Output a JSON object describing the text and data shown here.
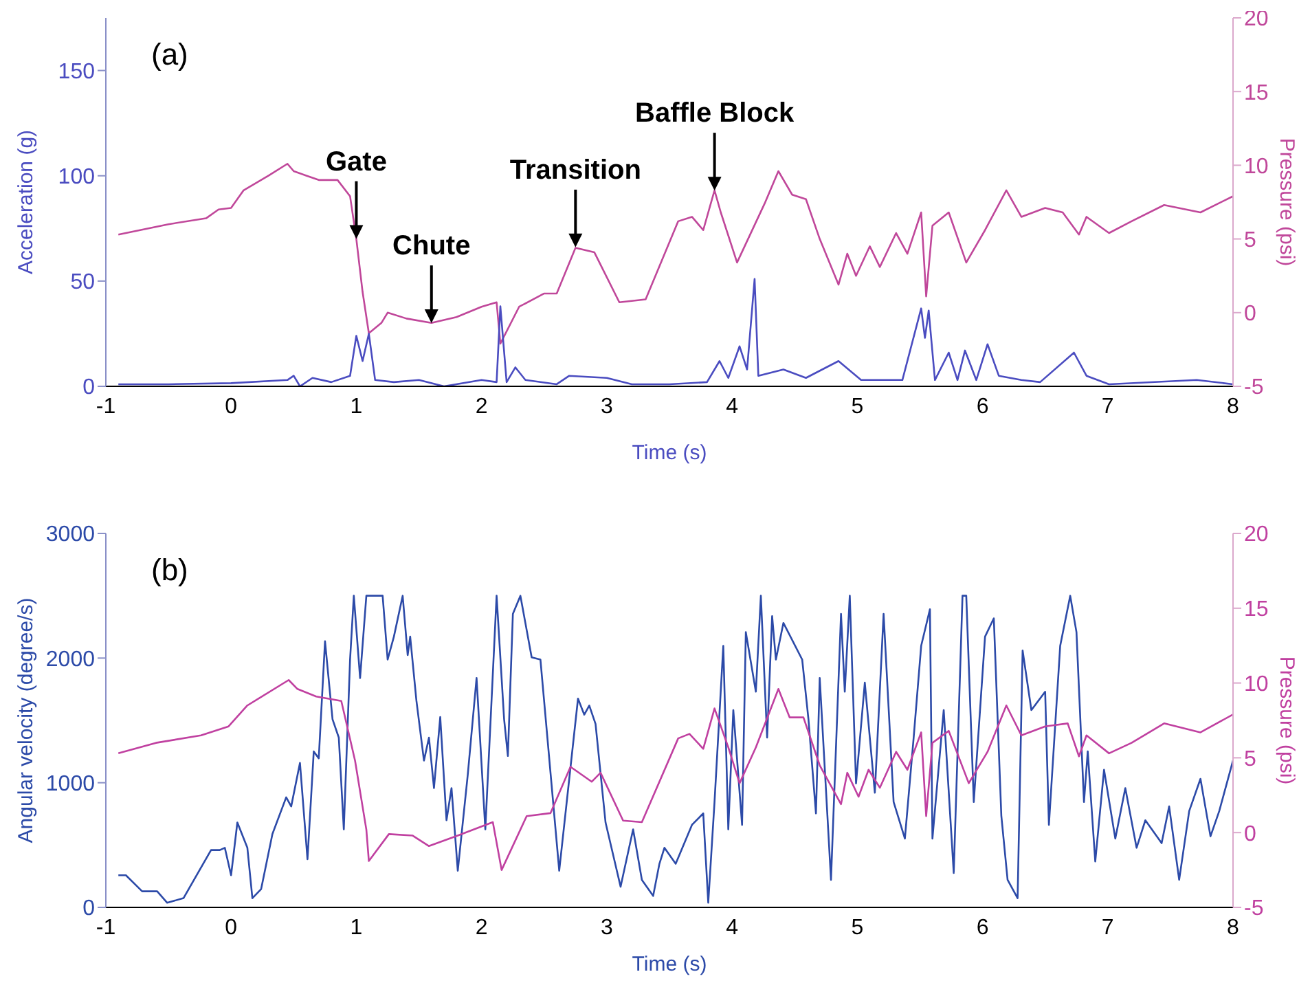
{
  "chart_data": [
    {
      "type": "line",
      "xlabel": "Time (s)",
      "ylabel": "Acceleration (g)",
      "y2label": "Pressure (psi)",
      "xlim": [
        -1,
        8
      ],
      "xticks": [
        -1,
        0,
        1,
        2,
        3,
        4,
        5,
        6,
        7,
        8
      ],
      "ylim": [
        0,
        175
      ],
      "yticks": [
        0,
        50,
        100,
        150
      ],
      "y2lim": [
        -5,
        20
      ],
      "y2ticks": [
        -5,
        0,
        5,
        10,
        15,
        20
      ],
      "marker": "none",
      "annotations": [
        "(a)",
        {
          "text": "Gate",
          "x": 1.0,
          "y": 70
        },
        {
          "text": "Chute",
          "x": 1.6,
          "y": 30
        },
        {
          "text": "Transition",
          "x": 2.75,
          "y": 66
        },
        {
          "text": "Baffle Block",
          "x": 3.86,
          "y": 93
        }
      ],
      "series": [
        {
          "color": "#c0479a",
          "axis": "y2",
          "x": [
            -0.9,
            -0.5,
            -0.2,
            -0.1,
            0,
            0.1,
            0.3,
            0.45,
            0.5,
            0.6,
            0.7,
            0.85,
            0.95,
            1.0,
            1.05,
            1.1,
            1.2,
            1.25,
            1.4,
            1.6,
            1.8,
            2.0,
            2.12,
            2.15,
            2.3,
            2.5,
            2.6,
            2.75,
            2.9,
            3.1,
            3.31,
            3.57,
            3.68,
            3.77,
            3.86,
            3.91,
            4.04,
            4.26,
            4.37,
            4.48,
            4.59,
            4.7,
            4.85,
            4.92,
            4.99,
            5.1,
            5.18,
            5.31,
            5.4,
            5.51,
            5.55,
            5.6,
            5.73,
            5.87,
            6.02,
            6.19,
            6.31,
            6.5,
            6.64,
            6.77,
            6.83,
            7.01,
            7.19,
            7.45,
            7.74,
            8.0
          ],
          "values": [
            5.3,
            6.0,
            6.4,
            7.0,
            7.1,
            8.3,
            9.3,
            10.1,
            9.6,
            9.3,
            9.0,
            9.0,
            7.9,
            5.0,
            1.4,
            -1.4,
            -0.7,
            0,
            -0.4,
            -0.7,
            -0.3,
            0.4,
            0.7,
            -2.1,
            0.4,
            1.3,
            1.3,
            4.4,
            4.1,
            0.7,
            0.9,
            6.2,
            6.5,
            5.6,
            8.3,
            6.8,
            3.4,
            7.4,
            9.6,
            8.0,
            7.7,
            5.0,
            1.9,
            4.0,
            2.5,
            4.5,
            3.1,
            5.4,
            4.0,
            6.8,
            1.1,
            5.9,
            6.8,
            3.4,
            5.6,
            8.3,
            6.5,
            7.1,
            6.8,
            5.3,
            6.5,
            5.4,
            6.2,
            7.3,
            6.8,
            7.9
          ]
        },
        {
          "color": "#4a4cc0",
          "axis": "y",
          "x": [
            -0.9,
            -0.5,
            0,
            0.45,
            0.5,
            0.55,
            0.65,
            0.8,
            0.95,
            1.0,
            1.05,
            1.1,
            1.15,
            1.3,
            1.5,
            1.7,
            2.0,
            2.12,
            2.15,
            2.2,
            2.27,
            2.35,
            2.6,
            2.7,
            3.0,
            3.2,
            3.5,
            3.8,
            3.9,
            3.97,
            4.06,
            4.12,
            4.18,
            4.21,
            4.41,
            4.59,
            4.85,
            5.03,
            5.36,
            5.51,
            5.54,
            5.57,
            5.62,
            5.73,
            5.8,
            5.86,
            5.95,
            6.04,
            6.13,
            6.31,
            6.46,
            6.73,
            6.83,
            7.01,
            7.71,
            8.0
          ],
          "values": [
            1,
            1,
            1.5,
            3,
            5,
            0,
            4,
            2,
            5,
            24,
            12,
            25,
            3,
            2,
            3,
            0,
            3,
            2,
            38,
            2,
            9,
            3,
            1,
            5,
            4,
            1,
            1,
            2,
            12,
            4,
            19,
            8,
            51,
            5,
            8,
            4,
            12,
            3,
            3,
            37,
            23,
            36,
            3,
            16,
            3,
            17,
            3,
            20,
            5,
            3,
            2,
            16,
            5,
            1,
            3,
            1
          ]
        }
      ]
    },
    {
      "type": "line",
      "xlabel": "Time (s)",
      "ylabel": "Angular velocity (degree/s)",
      "y2label": "Pressure (psi)",
      "xlim": [
        -1,
        8
      ],
      "xticks": [
        -1,
        0,
        1,
        2,
        3,
        4,
        5,
        6,
        7,
        8
      ],
      "ylim": [
        0,
        3000
      ],
      "yticks": [
        0,
        1000,
        2000,
        3000
      ],
      "y2lim": [
        -5,
        20
      ],
      "y2ticks": [
        -5,
        0,
        5,
        10,
        15,
        20
      ],
      "marker": "none",
      "annotations": [
        "(b)"
      ],
      "series": [
        {
          "color": "#2c4aa8",
          "axis": "y",
          "x": [
            -0.9,
            -0.84,
            -0.71,
            -0.59,
            -0.51,
            -0.38,
            -0.16,
            -0.09,
            -0.05,
            0.0,
            0.05,
            0.13,
            0.17,
            0.24,
            0.33,
            0.44,
            0.48,
            0.55,
            0.61,
            0.66,
            0.7,
            0.75,
            0.81,
            0.86,
            0.9,
            0.95,
            0.98,
            1.03,
            1.08,
            1.21,
            1.25,
            1.3,
            1.37,
            1.41,
            1.43,
            1.48,
            1.54,
            1.58,
            1.62,
            1.67,
            1.72,
            1.76,
            1.81,
            1.89,
            1.96,
            2.03,
            2.12,
            2.18,
            2.21,
            2.25,
            2.31,
            2.4,
            2.47,
            2.62,
            2.77,
            2.82,
            2.86,
            2.91,
            2.99,
            3.11,
            3.21,
            3.28,
            3.37,
            3.42,
            3.46,
            3.55,
            3.68,
            3.77,
            3.81,
            3.86,
            3.93,
            3.97,
            4.01,
            4.08,
            4.11,
            4.19,
            4.23,
            4.28,
            4.32,
            4.35,
            4.41,
            4.56,
            4.61,
            4.67,
            4.7,
            4.79,
            4.87,
            4.9,
            4.94,
            4.99,
            5.06,
            5.14,
            5.21,
            5.29,
            5.38,
            5.45,
            5.51,
            5.58,
            5.6,
            5.69,
            5.77,
            5.84,
            5.87,
            5.93,
            6.02,
            6.09,
            6.15,
            6.2,
            6.28,
            6.32,
            6.39,
            6.5,
            6.53,
            6.62,
            6.7,
            6.75,
            6.81,
            6.84,
            6.9,
            6.97,
            7.06,
            7.14,
            7.23,
            7.3,
            7.43,
            7.49,
            7.57,
            7.65,
            7.74,
            7.82,
            7.89,
            8.0
          ],
          "values": [
            258,
            258,
            129,
            129,
            37,
            74,
            460,
            460,
            478,
            258,
            681,
            478,
            74,
            147,
            589,
            883,
            810,
            1159,
            386,
            1251,
            1196,
            2135,
            1509,
            1362,
            626,
            1988,
            2500,
            1840,
            2500,
            2500,
            1988,
            2172,
            2500,
            2024,
            2172,
            1656,
            1178,
            1362,
            957,
            1527,
            699,
            957,
            294,
            1067,
            1840,
            626,
            2500,
            1509,
            1215,
            2355,
            2500,
            2006,
            1988,
            294,
            1675,
            1546,
            1619,
            1472,
            681,
            166,
            626,
            221,
            92,
            350,
            478,
            350,
            662,
            754,
            37,
            846,
            2098,
            626,
            1583,
            662,
            2208,
            1730,
            2500,
            1362,
            2337,
            1988,
            2282,
            1988,
            1509,
            754,
            1840,
            221,
            2355,
            1730,
            2500,
            994,
            1803,
            920,
            2355,
            846,
            552,
            1362,
            2098,
            2392,
            552,
            1583,
            276,
            2500,
            2500,
            846,
            2172,
            2319,
            736,
            221,
            74,
            2061,
            1583,
            1730,
            662,
            2098,
            2500,
            2208,
            846,
            1251,
            368,
            1104,
            552,
            957,
            478,
            699,
            515,
            810,
            221,
            773,
            1031,
            570,
            773,
            1178
          ]
        },
        {
          "color": "#c040a0",
          "axis": "y2",
          "x": [
            -0.9,
            -0.6,
            -0.24,
            -0.02,
            0.13,
            0.46,
            0.53,
            0.68,
            0.88,
            0.99,
            1.08,
            1.1,
            1.26,
            1.45,
            1.58,
            1.81,
            2.09,
            2.16,
            2.36,
            2.55,
            2.71,
            2.88,
            2.95,
            3.13,
            3.28,
            3.57,
            3.66,
            3.77,
            3.86,
            3.97,
            4.06,
            4.19,
            4.37,
            4.46,
            4.57,
            4.7,
            4.87,
            4.92,
            5.01,
            5.09,
            5.18,
            5.31,
            5.4,
            5.51,
            5.55,
            5.6,
            5.73,
            5.89,
            6.04,
            6.19,
            6.31,
            6.5,
            6.68,
            6.77,
            6.83,
            7.01,
            7.19,
            7.45,
            7.74,
            8.0
          ],
          "values": [
            5.3,
            6.0,
            6.5,
            7.1,
            8.5,
            10.2,
            9.6,
            9.1,
            8.8,
            4.8,
            0.2,
            -1.9,
            -0.1,
            -0.2,
            -0.9,
            -0.2,
            0.7,
            -2.5,
            1.1,
            1.3,
            4.4,
            3.4,
            4.0,
            0.8,
            0.7,
            6.3,
            6.6,
            5.6,
            8.3,
            5.7,
            3.3,
            5.7,
            9.6,
            7.7,
            7.7,
            4.5,
            1.9,
            4.0,
            2.4,
            4.2,
            3.0,
            5.4,
            4.2,
            6.7,
            1.1,
            6.0,
            6.8,
            3.3,
            5.4,
            8.5,
            6.5,
            7.1,
            7.3,
            5.1,
            6.5,
            5.3,
            6.0,
            7.3,
            6.7,
            7.9
          ]
        }
      ]
    }
  ]
}
